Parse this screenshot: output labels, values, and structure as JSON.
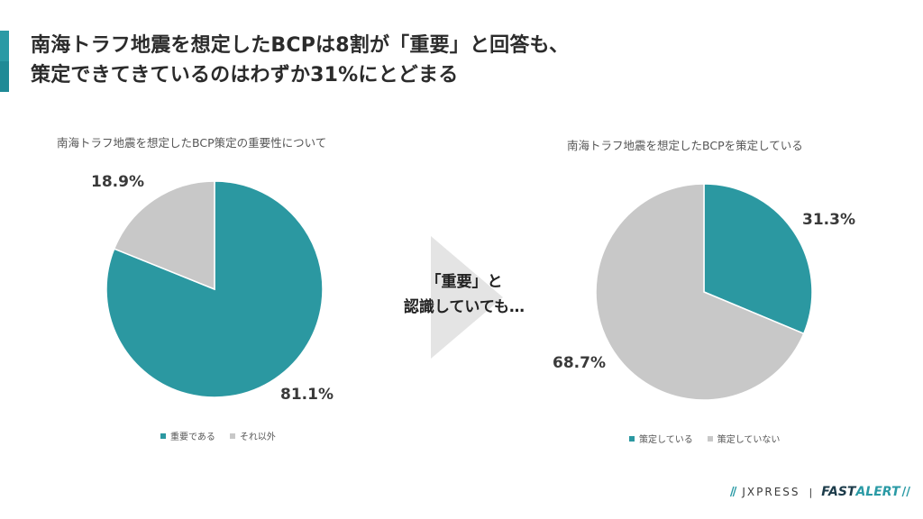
{
  "headline": {
    "line1": "南海トラフ地震を想定したBCPは8割が「重要」と回答も、",
    "line2": "策定できてきているのはわずか31%にとどまる"
  },
  "chart_data": [
    {
      "type": "pie",
      "title": "南海トラフ地震を想定したBCP策定の重要性について",
      "slices": [
        {
          "name": "重要である",
          "value": 81.1,
          "label": "81.1%",
          "color": "#2b98a1"
        },
        {
          "name": "それ以外",
          "value": 18.9,
          "label": "18.9%",
          "color": "#c8c8c8"
        }
      ],
      "legend_position": "bottom"
    },
    {
      "type": "pie",
      "title": "南海トラフ地震を想定したBCPを策定している",
      "slices": [
        {
          "name": "策定している",
          "value": 31.3,
          "label": "31.3%",
          "color": "#2b98a1"
        },
        {
          "name": "策定していない",
          "value": 68.7,
          "label": "68.7%",
          "color": "#c8c8c8"
        }
      ],
      "legend_position": "bottom"
    }
  ],
  "arrow": {
    "line1": "「重要」と",
    "line2": "認識していても…"
  },
  "footer": {
    "brand1_mark": "//",
    "brand1": "JXPRESS",
    "separator": "|",
    "brand2_part1": "FAST",
    "brand2_part2": "ALERT",
    "brand2_mark": "//"
  },
  "colors": {
    "accent": "#2a9aa5",
    "teal": "#2b98a1",
    "gray": "#c8c8c8"
  }
}
